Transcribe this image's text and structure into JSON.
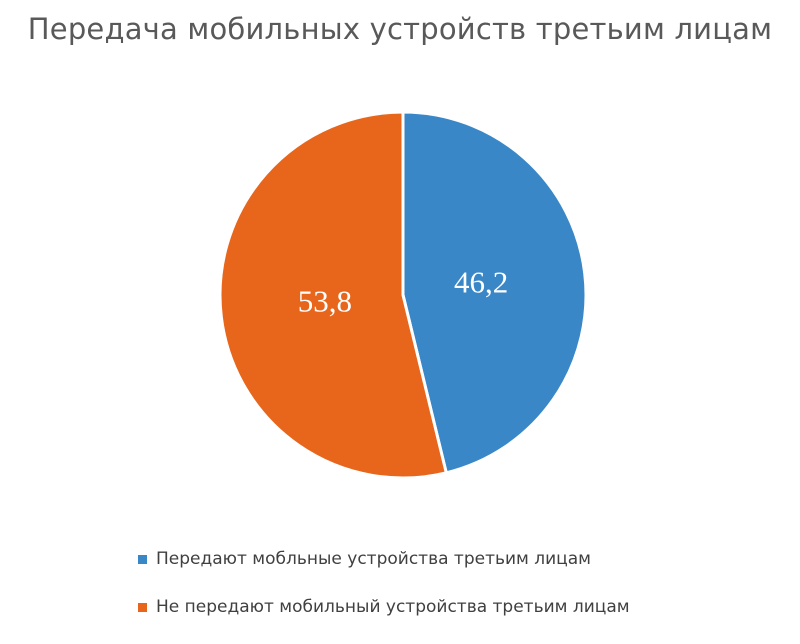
{
  "chart_data": {
    "type": "pie",
    "title": "Передача мобильных устройств третьим лицам",
    "legend_position": "bottom",
    "slices": [
      {
        "label": "Передают мобльные устройства третьим лицам",
        "value": 46.2,
        "value_label": "46,2",
        "color": "#3A87C8"
      },
      {
        "label": "Не передают мобильный устройства третьим лицам",
        "value": 53.8,
        "value_label": "53,8",
        "color": "#E8661C"
      }
    ]
  }
}
